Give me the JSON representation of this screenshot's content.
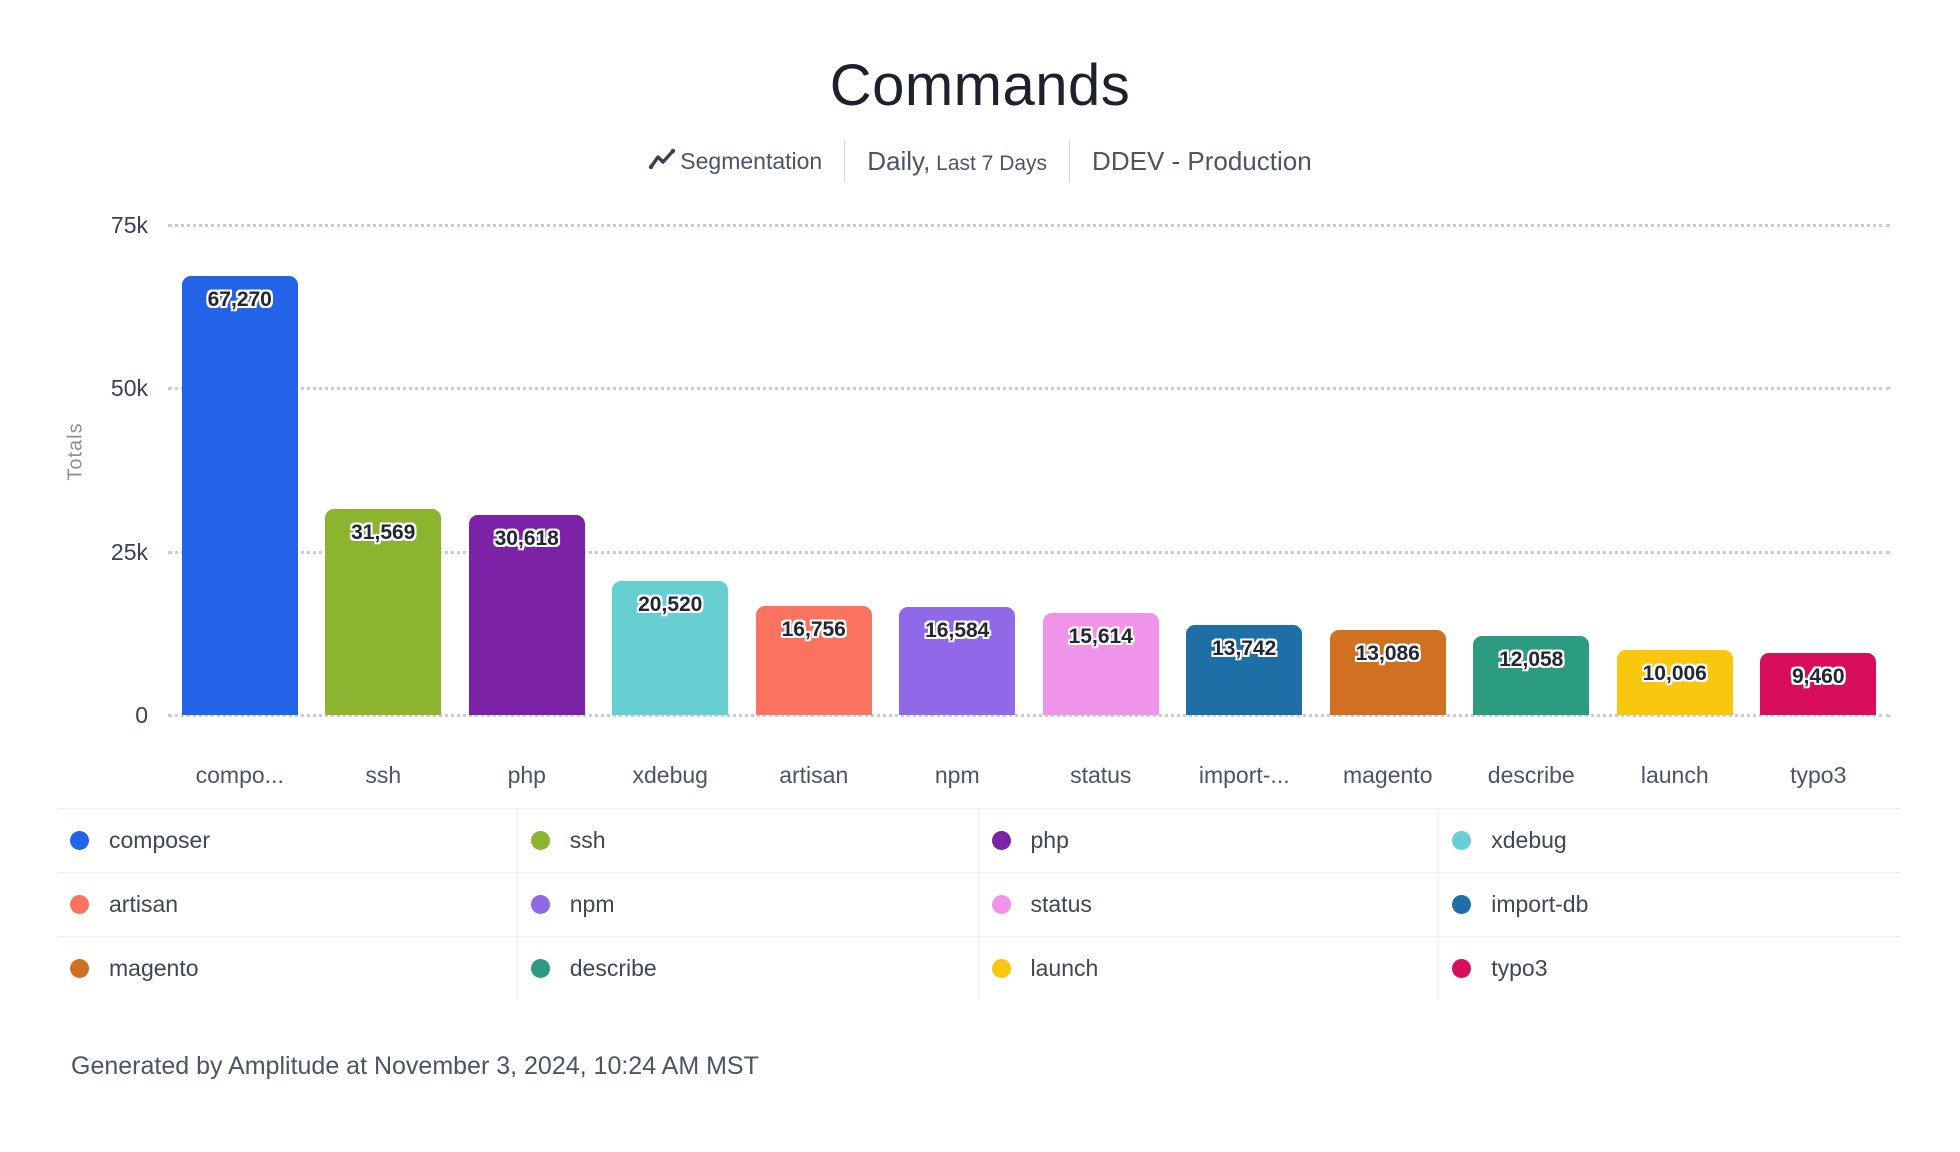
{
  "title": "Commands",
  "subtitle": {
    "segmentation_label": "Segmentation",
    "period_primary": "Daily,",
    "period_secondary": " Last 7 Days",
    "project": "DDEV - Production"
  },
  "y_axis": {
    "title": "Totals",
    "ticks": [
      "75k",
      "50k",
      "25k",
      "0"
    ],
    "max": 75000
  },
  "chart_data": {
    "type": "bar",
    "title": "Commands",
    "xlabel": "",
    "ylabel": "Totals",
    "ylim": [
      0,
      75000
    ],
    "grid": true,
    "legend_position": "bottom",
    "legend_columns": 4,
    "categories": [
      "composer",
      "ssh",
      "php",
      "xdebug",
      "artisan",
      "npm",
      "status",
      "import-db",
      "magento",
      "describe",
      "launch",
      "typo3"
    ],
    "x_tick_labels": [
      "compo...",
      "ssh",
      "php",
      "xdebug",
      "artisan",
      "npm",
      "status",
      "import-...",
      "magento",
      "describe",
      "launch",
      "typo3"
    ],
    "values": [
      67270,
      31569,
      30618,
      20520,
      16756,
      16584,
      15614,
      13742,
      13086,
      12058,
      10006,
      9460
    ],
    "value_labels": [
      "67,270",
      "31,569",
      "30,618",
      "20,520",
      "16,756",
      "16,584",
      "15,614",
      "13,742",
      "13,086",
      "12,058",
      "10,006",
      "9,460"
    ],
    "colors": [
      "#2363e8",
      "#8cb42f",
      "#7d21a6",
      "#67ced2",
      "#f9735e",
      "#9069e8",
      "#f094ea",
      "#1d6fa5",
      "#cf7120",
      "#2c9c80",
      "#f8c70e",
      "#d80e5c"
    ]
  },
  "footer": "Generated by Amplitude at November 3, 2024, 10:24 AM MST"
}
